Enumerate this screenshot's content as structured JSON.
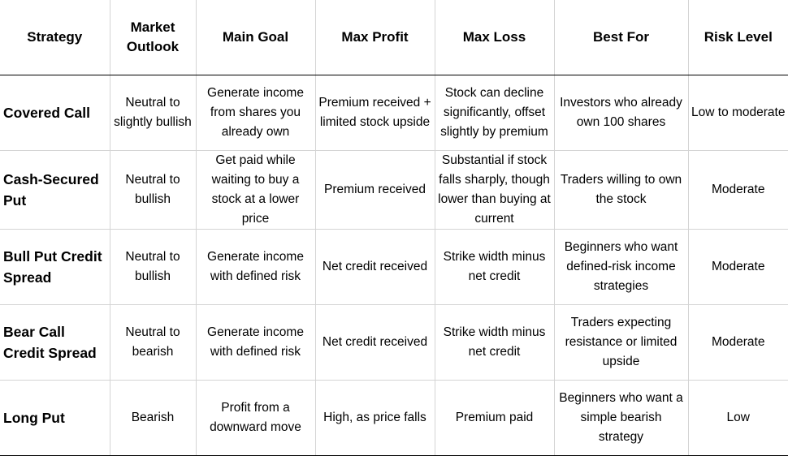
{
  "table": {
    "headers": [
      "Strategy",
      "Market Outlook",
      "Main Goal",
      "Max Profit",
      "Max Loss",
      "Best For",
      "Risk Level"
    ],
    "rows": [
      {
        "strategy": "Covered Call",
        "outlook": "Neutral to slightly bullish",
        "goal": "Generate income from shares you already own",
        "max_profit": "Premium received + limited stock upside",
        "max_loss": "Stock can decline significantly, offset slightly by premium",
        "best_for": "Investors who already own 100 shares",
        "risk": "Low to moderate"
      },
      {
        "strategy": "Cash-Secured Put",
        "outlook": "Neutral to bullish",
        "goal": "Get paid while waiting to buy a stock at a lower price",
        "max_profit": "Premium received",
        "max_loss": "Substantial if stock falls sharply, though lower than buying at current",
        "best_for": "Traders willing to own the stock",
        "risk": "Moderate"
      },
      {
        "strategy": "Bull Put Credit Spread",
        "outlook": "Neutral to bullish",
        "goal": "Generate income with defined risk",
        "max_profit": "Net credit received",
        "max_loss": "Strike width minus net credit",
        "best_for": "Beginners who want defined-risk income strategies",
        "risk": "Moderate"
      },
      {
        "strategy": "Bear Call Credit Spread",
        "outlook": "Neutral to bearish",
        "goal": "Generate income with defined risk",
        "max_profit": "Net credit received",
        "max_loss": "Strike width minus net credit",
        "best_for": "Traders expecting resistance or limited upside",
        "risk": "Moderate"
      },
      {
        "strategy": "Long Put",
        "outlook": "Bearish",
        "goal": "Profit from a downward move",
        "max_profit": "High, as price falls",
        "max_loss": "Premium paid",
        "best_for": "Beginners who want a simple bearish strategy",
        "risk": "Low"
      }
    ]
  }
}
